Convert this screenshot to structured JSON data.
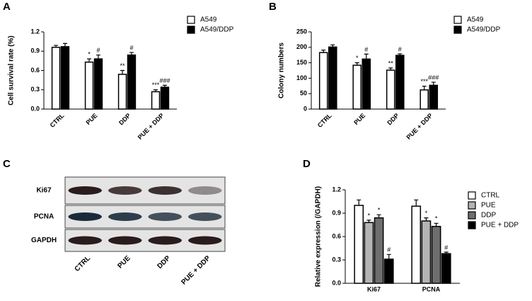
{
  "chart_data": [
    {
      "type": "bar",
      "panel": "A",
      "y_label": "Cell survival rate (%)",
      "legend": "right",
      "categories": [
        "CTRL",
        "PUE",
        "DDP",
        "PUE + DDP"
      ],
      "series": [
        {
          "name": "A549",
          "color": "#ffffff",
          "values": [
            0.96,
            0.73,
            0.54,
            0.27
          ],
          "errors": [
            0.03,
            0.05,
            0.06,
            0.03
          ],
          "annotations": [
            null,
            "*",
            "**",
            "***"
          ]
        },
        {
          "name": "A549/DDP",
          "color": "#000000",
          "values": [
            0.97,
            0.78,
            0.84,
            0.34
          ],
          "errors": [
            0.05,
            0.06,
            0.04,
            0.03
          ],
          "annotations": [
            null,
            "#",
            "#",
            "###"
          ]
        }
      ],
      "ylim": [
        0,
        1.2
      ],
      "yticks": [
        {
          "value": 0,
          "label": "0.0"
        },
        0.3,
        0.6,
        0.9,
        1.2
      ]
    },
    {
      "type": "bar",
      "panel": "B",
      "y_label": "Colony numbers",
      "legend": "right",
      "categories": [
        "CTRL",
        "PUE",
        "DDP",
        "PUE + DDP"
      ],
      "series": [
        {
          "name": "A549",
          "color": "#ffffff",
          "values": [
            183,
            142,
            126,
            62
          ],
          "errors": [
            8,
            8,
            7,
            12
          ],
          "annotations": [
            null,
            "*",
            "**",
            "***"
          ]
        },
        {
          "name": "A549/DDP",
          "color": "#000000",
          "values": [
            201,
            162,
            174,
            77
          ],
          "errors": [
            7,
            16,
            5,
            10
          ],
          "annotations": [
            null,
            "#",
            "#",
            "###"
          ]
        }
      ],
      "ylim": [
        0,
        250
      ],
      "yticks": [
        0,
        50,
        100,
        150,
        200,
        250
      ]
    },
    {
      "type": "blot",
      "panel": "C",
      "rows": [
        "Ki67",
        "PCNA",
        "GAPDH"
      ],
      "categories": [
        "CTRL",
        "PUE",
        "DDP",
        "PUE + DDP"
      ]
    },
    {
      "type": "bar",
      "panel": "D",
      "y_label": "Relative expression (/GAPDH)",
      "legend": "right",
      "categories": [
        "Ki67",
        "PCNA"
      ],
      "series": [
        {
          "name": "CTRL",
          "color": "#ffffff",
          "values": [
            1.0,
            0.99
          ],
          "errors": [
            0.07,
            0.08
          ],
          "annotations": [
            null,
            null
          ]
        },
        {
          "name": "PUE",
          "color": "#b4b4b4",
          "values": [
            0.78,
            0.8
          ],
          "errors": [
            0.03,
            0.04
          ],
          "annotations": [
            "*",
            "*"
          ]
        },
        {
          "name": "DDP",
          "color": "#6e6e6e",
          "values": [
            0.84,
            0.73
          ],
          "errors": [
            0.04,
            0.04
          ],
          "annotations": [
            "*",
            "*"
          ]
        },
        {
          "name": "PUE + DDP",
          "color": "#000000",
          "values": [
            0.31,
            0.38
          ],
          "errors": [
            0.06,
            0.02
          ],
          "annotations": [
            "#",
            "#"
          ]
        }
      ],
      "ylim": [
        0,
        1.2
      ],
      "yticks": [
        {
          "value": 0,
          "label": "0.0"
        },
        0.3,
        0.6,
        0.9,
        1.2
      ]
    }
  ]
}
